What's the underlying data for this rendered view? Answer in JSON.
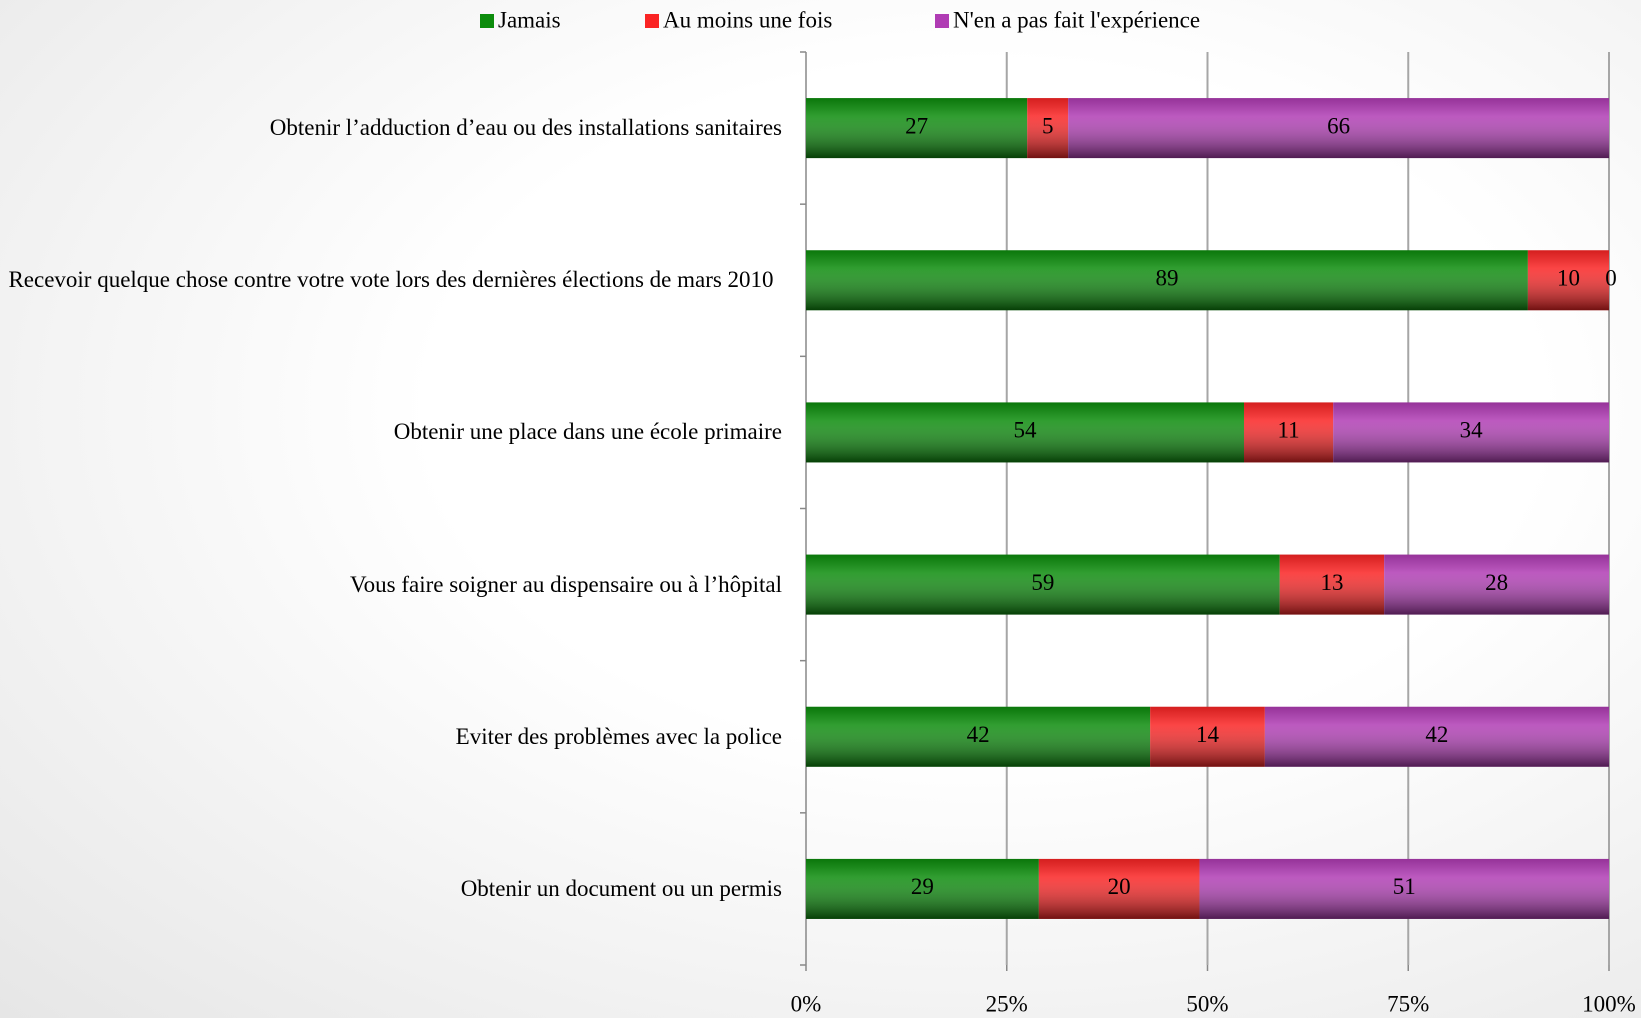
{
  "chart_data": {
    "type": "stacked_percent_barh",
    "categories": [
      "Obtenir l’adduction d’eau ou des installations sanitaires",
      "Recevoir quelque chose contre votre vote lors des dernières élections de mars 2010",
      "Obtenir une place dans une école primaire",
      "Vous faire soigner au dispensaire ou à l’hôpital",
      "Eviter des problèmes avec la police",
      "Obtenir un document ou un permis"
    ],
    "series": [
      {
        "name": "Jamais",
        "color": "#0c8c0c",
        "values": [
          27,
          89,
          54,
          59,
          42,
          29
        ]
      },
      {
        "name": "Au moins une fois",
        "color": "#fa2424",
        "values": [
          5,
          10,
          11,
          13,
          14,
          20
        ]
      },
      {
        "name": "N'en a pas fait l'expérience",
        "color": "#b03cb4",
        "values": [
          66,
          0,
          34,
          28,
          42,
          51
        ]
      }
    ],
    "xlim": [
      0,
      100
    ],
    "xticks": [
      {
        "value": 0,
        "label": "0%"
      },
      {
        "value": 25,
        "label": "25%"
      },
      {
        "value": 50,
        "label": "50%"
      },
      {
        "value": 75,
        "label": "75%"
      },
      {
        "value": 100,
        "label": "100%"
      }
    ],
    "grid": true,
    "legend": "top"
  }
}
